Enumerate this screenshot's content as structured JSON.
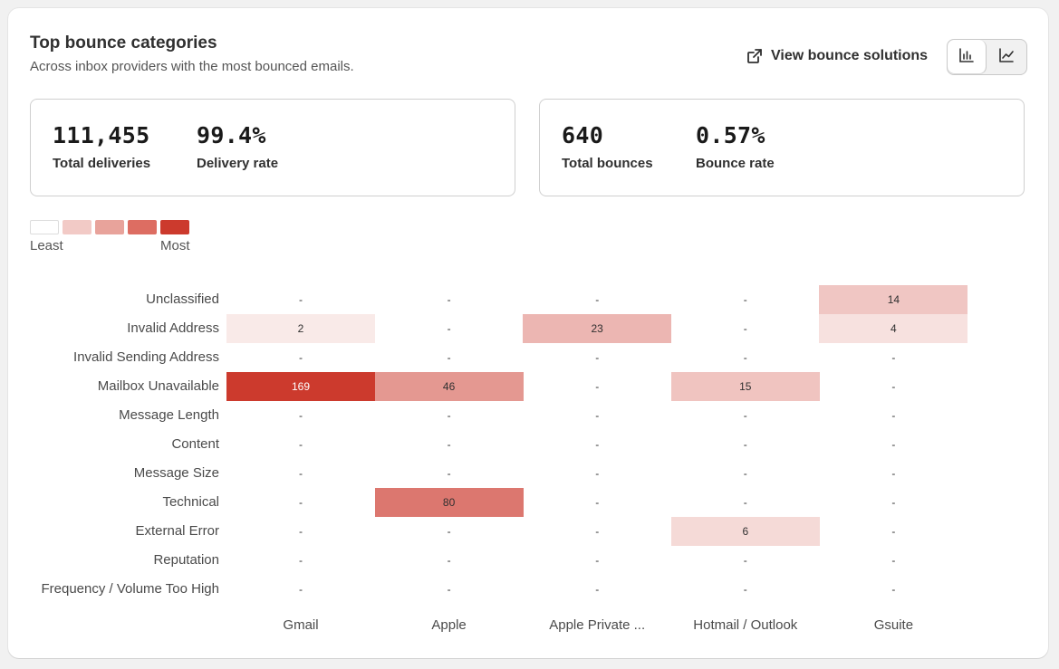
{
  "header": {
    "title": "Top bounce categories",
    "subtitle": "Across inbox providers with the most bounced emails.",
    "view_link_label": "View bounce solutions",
    "view_toggle": {
      "options": [
        "bar-chart-icon",
        "line-chart-icon"
      ],
      "selected": "bar-chart-icon"
    }
  },
  "stats": {
    "deliveries": {
      "value": "111,455",
      "label": "Total deliveries"
    },
    "delivery_rate": {
      "value": "99.4%",
      "label": "Delivery rate"
    },
    "bounces": {
      "value": "640",
      "label": "Total bounces"
    },
    "bounce_rate": {
      "value": "0.57%",
      "label": "Bounce rate"
    }
  },
  "legend": {
    "least_label": "Least",
    "most_label": "Most",
    "colors": [
      "#ffffff",
      "#f2cac6",
      "#e8a39b",
      "#dd6d62",
      "#cc3a2d"
    ]
  },
  "chart_data": {
    "type": "heatmap",
    "title": "Top bounce categories",
    "rows": [
      "Unclassified",
      "Invalid Address",
      "Invalid Sending Address",
      "Mailbox Unavailable",
      "Message Length",
      "Content",
      "Message Size",
      "Technical",
      "External Error",
      "Reputation",
      "Frequency / Volume Too High"
    ],
    "columns": [
      "Gmail",
      "Apple",
      "Apple Private ...",
      "Hotmail / Outlook",
      "Gsuite"
    ],
    "values": [
      [
        null,
        null,
        null,
        null,
        14
      ],
      [
        2,
        null,
        23,
        null,
        4
      ],
      [
        null,
        null,
        null,
        null,
        null
      ],
      [
        169,
        46,
        null,
        15,
        null
      ],
      [
        null,
        null,
        null,
        null,
        null
      ],
      [
        null,
        null,
        null,
        null,
        null
      ],
      [
        null,
        null,
        null,
        null,
        null
      ],
      [
        null,
        80,
        null,
        null,
        null
      ],
      [
        null,
        null,
        null,
        6,
        null
      ],
      [
        null,
        null,
        null,
        null,
        null
      ],
      [
        null,
        null,
        null,
        null,
        null
      ]
    ],
    "empty_symbol": "-",
    "color_min": "#ffffff",
    "color_max": "#cc3a2d",
    "value_max": 169
  }
}
